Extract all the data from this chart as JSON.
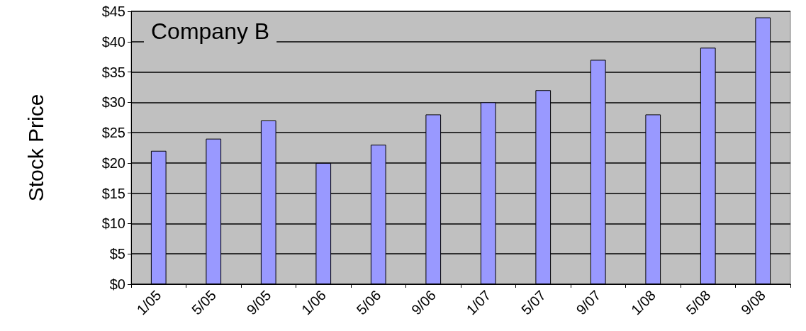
{
  "chart_data": {
    "type": "bar",
    "title": "Company B",
    "ylabel": "Stock Price",
    "categories": [
      "1/05",
      "5/05",
      "9/05",
      "1/06",
      "5/06",
      "9/06",
      "1/07",
      "5/07",
      "9/07",
      "1/08",
      "5/08",
      "9/08"
    ],
    "values": [
      22,
      24,
      27,
      20,
      23,
      28,
      30,
      32,
      37,
      28,
      39,
      44
    ],
    "color": "#9999ff",
    "ylim": [
      0,
      45
    ],
    "yticks": [
      {
        "value": 0,
        "label": "$0"
      },
      {
        "value": 5,
        "label": "$5"
      },
      {
        "value": 10,
        "label": "$10"
      },
      {
        "value": 15,
        "label": "$15"
      },
      {
        "value": 20,
        "label": "$20"
      },
      {
        "value": 25,
        "label": "$25"
      },
      {
        "value": 30,
        "label": "$30"
      },
      {
        "value": 35,
        "label": "$35"
      },
      {
        "value": 40,
        "label": "$40"
      },
      {
        "value": 45,
        "label": "$45"
      }
    ],
    "grid": "y"
  }
}
